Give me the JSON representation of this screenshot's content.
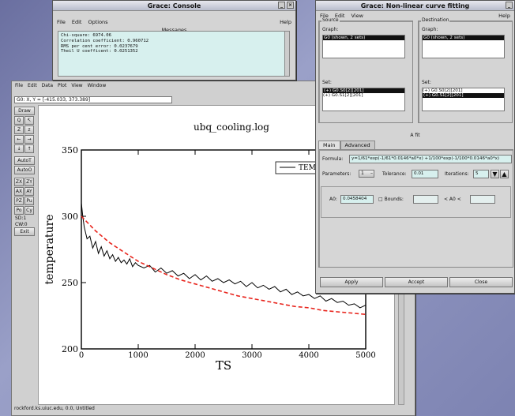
{
  "console": {
    "title": "Grace: Console",
    "menu": {
      "file": "File",
      "edit": "Edit",
      "options": "Options",
      "help": "Help"
    },
    "messages_label": "Messages",
    "messages": [
      "Chi-square: 6974.06",
      "Correlation coefficient: 0.960712",
      "RMS per cent error: 0.0237679",
      "Theil U coefficent: 0.0251352"
    ]
  },
  "main": {
    "menu": [
      "File",
      "Edit",
      "Data",
      "Plot",
      "View",
      "Window"
    ],
    "coord": "G0: X, Y = [-415.033, 373.389]",
    "toolbox": {
      "draw": "Draw",
      "zoom_pairs": [
        [
          "Q",
          "↸"
        ],
        [
          "Z",
          "z"
        ],
        [
          "←",
          "→"
        ],
        [
          "↓",
          "↑"
        ]
      ],
      "autot": "AutoT",
      "autoo": "AutoO",
      "axis_pairs": [
        [
          "ZX",
          "ZY"
        ],
        [
          "AX",
          "AY"
        ],
        [
          "PZ",
          "Pu"
        ],
        [
          "Po",
          "Cy"
        ]
      ],
      "sd": "SD:1",
      "cw": "CW:0",
      "exit": "Exit"
    },
    "status": "rockford.ks.uiuc.edu, 0.0, Untitled"
  },
  "fit": {
    "title": "Grace: Non-linear curve fitting",
    "menu": {
      "file": "File",
      "edit": "Edit",
      "view": "View",
      "help": "Help"
    },
    "source_label": "Source",
    "dest_label": "Destination",
    "graph_label": "Graph:",
    "source_graph": "G0 (shown, 2 sets)",
    "dest_graph": "G0 (shown, 2 sets)",
    "set_label": "Set:",
    "source_sets": [
      "(+) G0.S0[2][201]",
      "(+) G0.S1[2][201]"
    ],
    "dest_sets": [
      "(+) G0.S0[2][201]",
      "(+) G0.S1[2][201]"
    ],
    "a_fit": "A fit",
    "tab_main": "Main",
    "tab_advanced": "Advanced",
    "formula_label": "Formula:",
    "formula": "y=1/61*exp(-1/61*0.0146*a0*x) +1/100*exp(-1/100*0.0146*a0*x)",
    "parameters_label": "Parameters:",
    "parameters": "1",
    "tolerance_label": "Tolerance:",
    "tolerance": "0.01",
    "iterations_label": "Iterations:",
    "iterations": "5",
    "a0_label": "A0:",
    "a0": "0.0458404",
    "bounds_label": "Bounds:",
    "bounds_mid": "< A0 <",
    "apply": "Apply",
    "accept": "Accept",
    "close": "Close"
  },
  "chart_data": {
    "type": "line",
    "title": "ubq_cooling.log",
    "xlabel": "TS",
    "ylabel": "temperature",
    "xlim": [
      0,
      5000
    ],
    "ylim": [
      200,
      350
    ],
    "xticks": [
      0,
      1000,
      2000,
      3000,
      4000,
      5000
    ],
    "yticks": [
      200,
      250,
      300,
      350
    ],
    "legend": "top-right",
    "series": [
      {
        "name": "TEMP",
        "color": "#000000",
        "style": "solid",
        "x": [
          0,
          25,
          50,
          100,
          150,
          200,
          250,
          300,
          350,
          400,
          450,
          500,
          550,
          600,
          650,
          700,
          750,
          800,
          850,
          900,
          950,
          1000,
          1100,
          1200,
          1300,
          1400,
          1500,
          1600,
          1700,
          1800,
          1900,
          2000,
          2100,
          2200,
          2300,
          2400,
          2500,
          2600,
          2700,
          2800,
          2900,
          3000,
          3100,
          3200,
          3300,
          3400,
          3500,
          3600,
          3700,
          3800,
          3900,
          4000,
          4100,
          4200,
          4300,
          4400,
          4500,
          4600,
          4700,
          4800,
          4900,
          5000
        ],
        "y": [
          310,
          300,
          292,
          283,
          285,
          276,
          281,
          272,
          277,
          270,
          274,
          268,
          271,
          266,
          269,
          265,
          267,
          264,
          268,
          262,
          265,
          263,
          261,
          263,
          258,
          261,
          257,
          259,
          255,
          257,
          253,
          256,
          252,
          255,
          251,
          253,
          250,
          252,
          249,
          251,
          247,
          250,
          246,
          248,
          245,
          247,
          243,
          245,
          241,
          243,
          240,
          241,
          238,
          240,
          236,
          238,
          235,
          236,
          233,
          234,
          231,
          233
        ]
      },
      {
        "name": "",
        "color": "#e8251d",
        "style": "dashed",
        "x": [
          0,
          250,
          500,
          750,
          1000,
          1250,
          1500,
          1750,
          2000,
          2250,
          2500,
          2750,
          3000,
          3250,
          3500,
          3750,
          4000,
          4250,
          4500,
          4750,
          5000
        ],
        "y": [
          300,
          289,
          280,
          273,
          266,
          261,
          256,
          252,
          249,
          246,
          243,
          240,
          238,
          236,
          234,
          232,
          231,
          229,
          228,
          227,
          226
        ]
      }
    ]
  }
}
